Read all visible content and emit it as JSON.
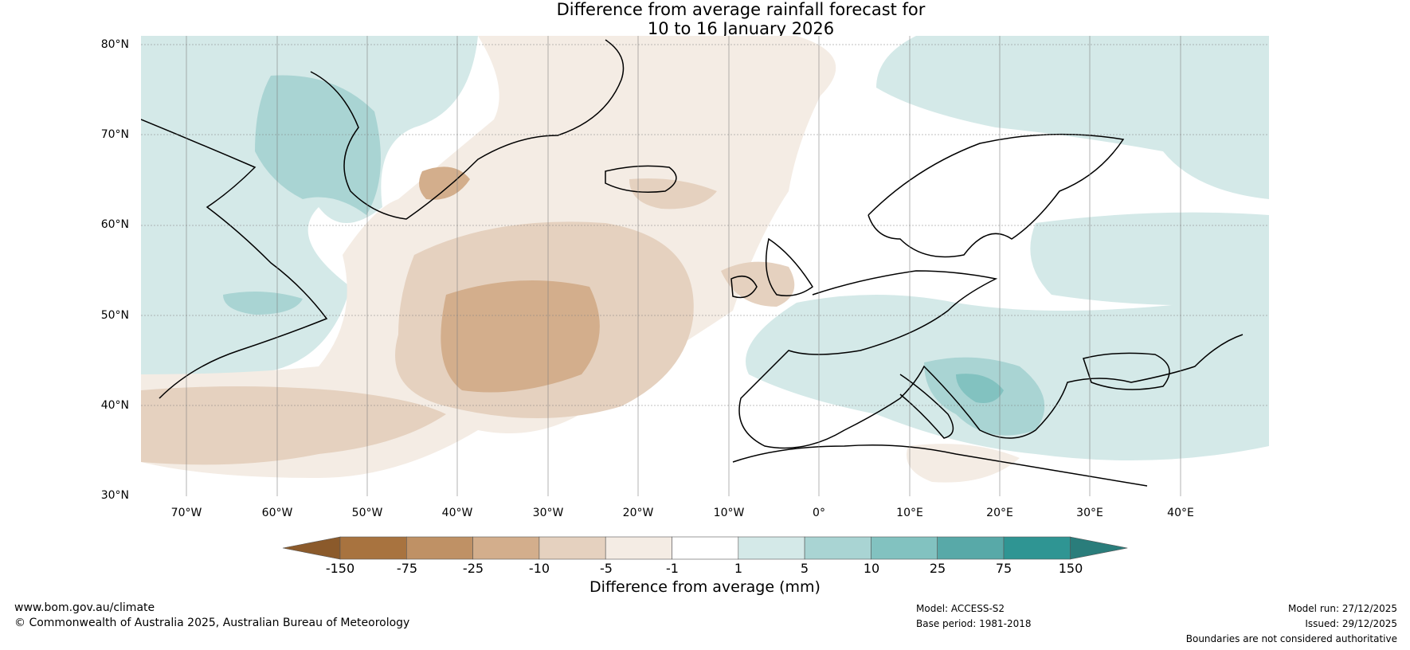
{
  "title": {
    "line1": "Difference from average rainfall forecast for",
    "line2": "10 to 16 January 2026"
  },
  "axes": {
    "y_labels": [
      "80°N",
      "70°N",
      "60°N",
      "50°N",
      "40°N",
      "30°N"
    ],
    "x_labels": [
      "70°W",
      "60°W",
      "50°W",
      "40°W",
      "30°W",
      "20°W",
      "10°W",
      "0°",
      "10°E",
      "20°E",
      "30°E",
      "40°E"
    ]
  },
  "colorbar": {
    "title": "Difference from average (mm)",
    "ticks": [
      "-150",
      "-75",
      "-25",
      "-10",
      "-5",
      "-1",
      "1",
      "5",
      "10",
      "25",
      "75",
      "150"
    ],
    "colors": [
      "#8b5a2b",
      "#a8733f",
      "#bf9165",
      "#d3ae8c",
      "#e5d1bf",
      "#f4ece4",
      "#ffffff",
      "#d4e9e8",
      "#a9d4d3",
      "#82c2c0",
      "#58a9a8",
      "#2f9593",
      "#2a7d7b"
    ]
  },
  "footer": {
    "url": "www.bom.gov.au/climate",
    "copyright": "© Commonwealth of Australia 2025, Australian Bureau of Meteorology",
    "model": "Model: ACCESS-S2",
    "base_period": "Base period: 1981-2018",
    "model_run": "Model run: 27/12/2025",
    "issued": "Issued: 29/12/2025",
    "disclaimer": "Boundaries are not considered authoritative"
  }
}
